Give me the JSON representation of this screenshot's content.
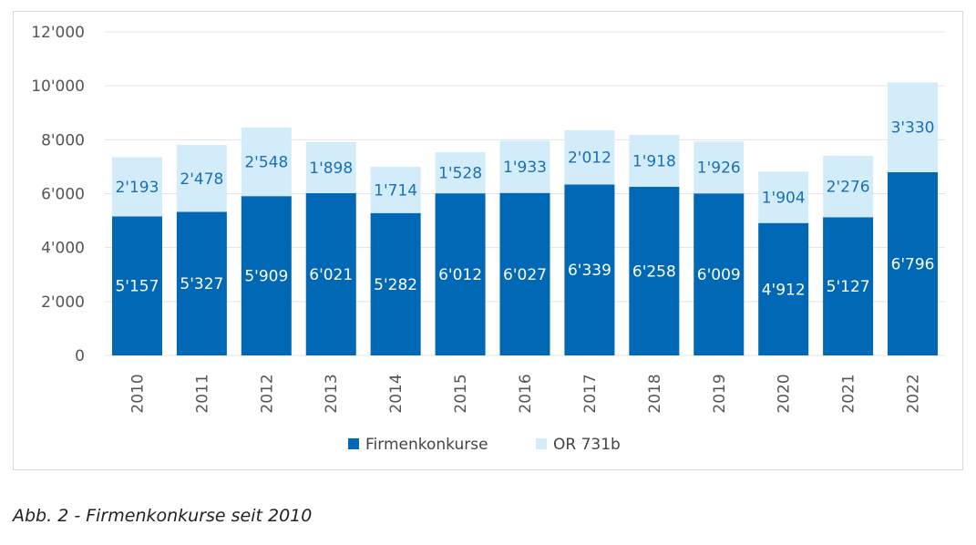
{
  "caption": "Abb. 2 - Firmenkonkurse seit 2010",
  "colors": {
    "firmenkonkurse": "#0068b4",
    "or731b": "#d3ecfa",
    "grid": "#e3e3e3",
    "label_top": "#1a6fb5"
  },
  "chart_data": {
    "type": "bar",
    "stacked": true,
    "categories": [
      "2010",
      "2011",
      "2012",
      "2013",
      "2014",
      "2015",
      "2016",
      "2017",
      "2018",
      "2019",
      "2020",
      "2021",
      "2022"
    ],
    "series": [
      {
        "name": "Firmenkonkurse",
        "values": [
          5157,
          5327,
          5909,
          6021,
          5282,
          6012,
          6027,
          6339,
          6258,
          6009,
          4912,
          5127,
          6796
        ],
        "labels": [
          "5'157",
          "5'327",
          "5'909",
          "6'021",
          "5'282",
          "6'012",
          "6'027",
          "6'339",
          "6'258",
          "6'009",
          "4'912",
          "5'127",
          "6'796"
        ]
      },
      {
        "name": "OR 731b",
        "values": [
          2193,
          2478,
          2548,
          1898,
          1714,
          1528,
          1933,
          2012,
          1918,
          1926,
          1904,
          2276,
          3330
        ],
        "labels": [
          "2'193",
          "2'478",
          "2'548",
          "1'898",
          "1'714",
          "1'528",
          "1'933",
          "2'012",
          "1'918",
          "1'926",
          "1'904",
          "2'276",
          "3'330"
        ]
      }
    ],
    "ylim": [
      0,
      12000
    ],
    "yticks": [
      0,
      2000,
      4000,
      6000,
      8000,
      10000,
      12000
    ],
    "ytick_labels": [
      "0",
      "2'000",
      "4'000",
      "6'000",
      "8'000",
      "10'000",
      "12'000"
    ],
    "grid": true,
    "legend_position": "bottom"
  }
}
